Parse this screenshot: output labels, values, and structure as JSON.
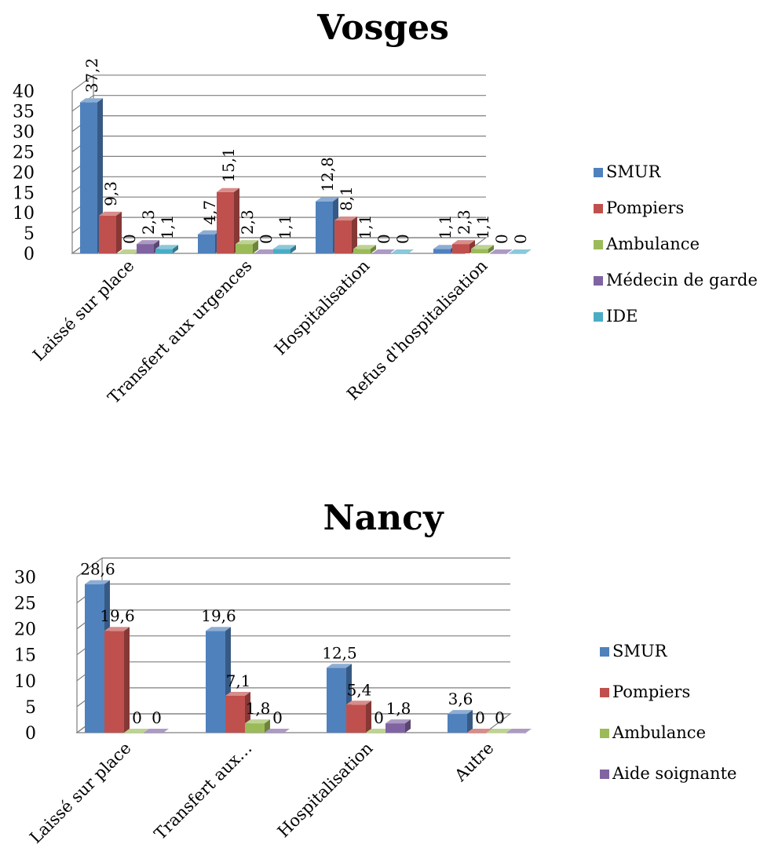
{
  "chart_data": [
    {
      "type": "bar",
      "title": "Vosges",
      "categories": [
        "Laissé sur place",
        "Transfert aux urgences",
        "Hospitalisation",
        "Refus d'hospitalisation"
      ],
      "series": [
        {
          "name": "SMUR",
          "values": [
            37.2,
            4.7,
            12.8,
            1.1
          ],
          "labels": [
            "37,2",
            "4,7",
            "12,8",
            "1,1"
          ],
          "color": "#4F81BD"
        },
        {
          "name": "Pompiers",
          "values": [
            9.3,
            15.1,
            8.1,
            2.3
          ],
          "labels": [
            "9,3",
            "15,1",
            "8,1",
            "2,3"
          ],
          "color": "#C0504D"
        },
        {
          "name": "Ambulance",
          "values": [
            0,
            2.3,
            1.1,
            1.1
          ],
          "labels": [
            "0",
            "2,3",
            "1,1",
            "1,1"
          ],
          "color": "#9BBB59"
        },
        {
          "name": "Médecin de garde",
          "values": [
            2.3,
            0,
            0,
            0
          ],
          "labels": [
            "2,3",
            "0",
            "0",
            "0"
          ],
          "color": "#8064A2"
        },
        {
          "name": "IDE",
          "values": [
            1.1,
            1.1,
            0,
            0
          ],
          "labels": [
            "1,1",
            "1,1",
            "0",
            "0"
          ],
          "color": "#4BACC6"
        }
      ],
      "yticks": [
        "0",
        "5",
        "10",
        "15",
        "20",
        "25",
        "30",
        "35",
        "40"
      ],
      "ylim": [
        0,
        40
      ],
      "data_label_orientation": "vertical",
      "legend_position": "right",
      "grid": true,
      "style": "3d-clustered-column"
    },
    {
      "type": "bar",
      "title": "Nancy",
      "categories": [
        "Laissé sur place",
        "Transfert aux…",
        "Hospitalisation",
        "Autre"
      ],
      "series": [
        {
          "name": "SMUR",
          "values": [
            28.6,
            19.6,
            12.5,
            3.6
          ],
          "labels": [
            "28,6",
            "19,6",
            "12,5",
            "3,6"
          ],
          "color": "#4F81BD"
        },
        {
          "name": "Pompiers",
          "values": [
            19.6,
            7.1,
            5.4,
            0
          ],
          "labels": [
            "19,6",
            "7,1",
            "5,4",
            "0"
          ],
          "color": "#C0504D"
        },
        {
          "name": "Ambulance",
          "values": [
            0,
            1.8,
            0,
            0
          ],
          "labels": [
            "0",
            "1,8",
            "0",
            "0"
          ],
          "color": "#9BBB59"
        },
        {
          "name": "Aide soignante",
          "values": [
            0,
            0,
            1.8,
            0
          ],
          "labels": [
            "0",
            "0",
            "1,8",
            ""
          ],
          "color": "#8064A2"
        }
      ],
      "yticks": [
        "0",
        "5",
        "10",
        "15",
        "20",
        "25",
        "30"
      ],
      "ylim": [
        0,
        30
      ],
      "data_label_orientation": "horizontal",
      "legend_position": "right",
      "grid": true,
      "style": "3d-clustered-column"
    }
  ]
}
